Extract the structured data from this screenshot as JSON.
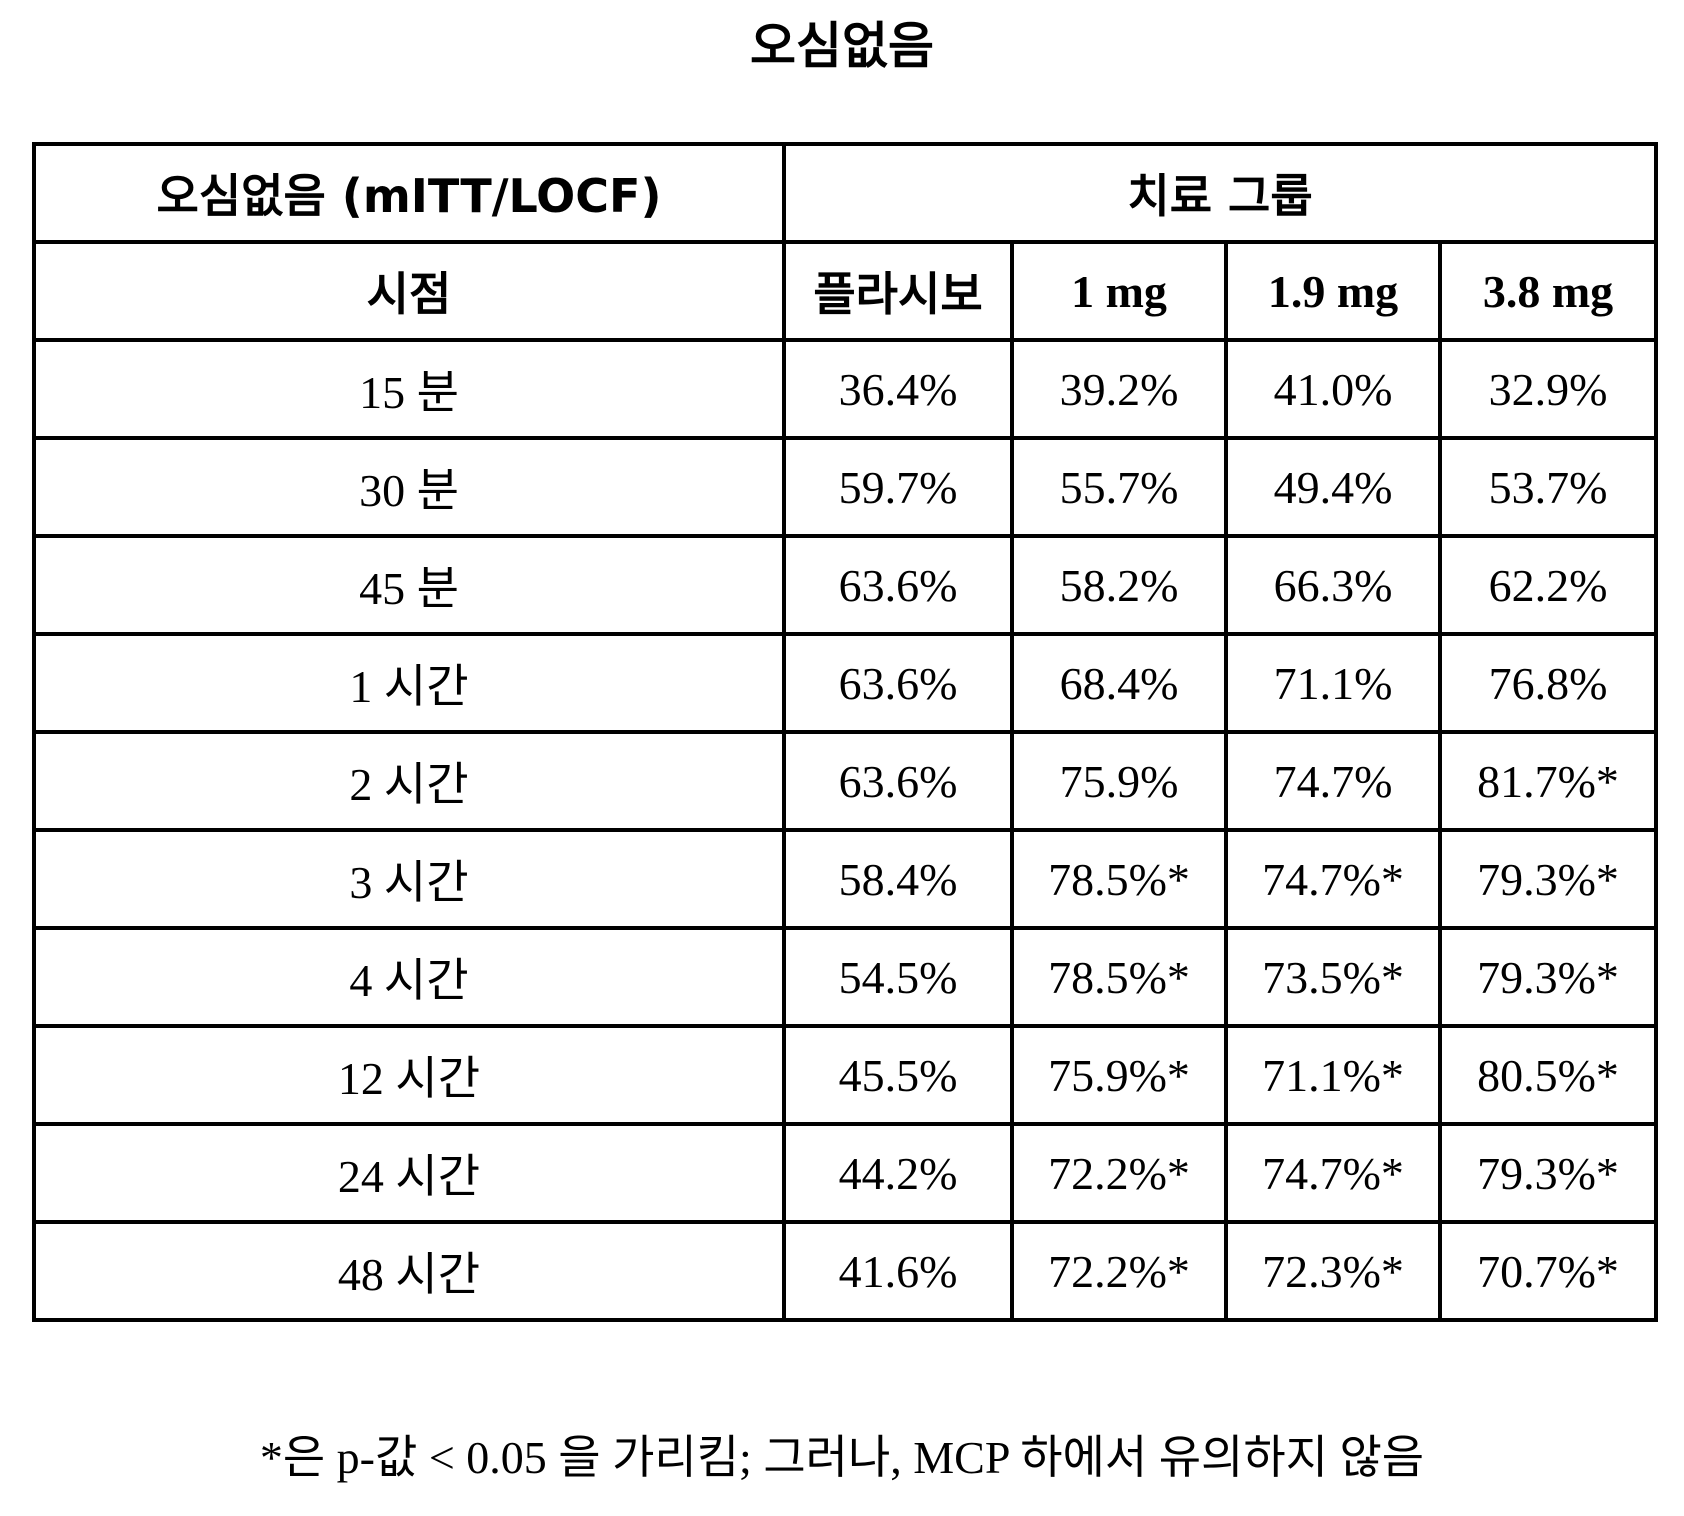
{
  "title": "오심없음",
  "table": {
    "header_row_1": {
      "left_label": "오심없음 (mITT/LOCF)",
      "group_label": "치료 그룹"
    },
    "header_row_2": {
      "timepoint_label": "시점",
      "columns": [
        "플라시보",
        "1 mg",
        "1.9 mg",
        "3.8 mg"
      ]
    },
    "rows": [
      {
        "timepoint": "15 분",
        "values": [
          "36.4%",
          "39.2%",
          "41.0%",
          "32.9%"
        ]
      },
      {
        "timepoint": "30 분",
        "values": [
          "59.7%",
          "55.7%",
          "49.4%",
          "53.7%"
        ]
      },
      {
        "timepoint": "45 분",
        "values": [
          "63.6%",
          "58.2%",
          "66.3%",
          "62.2%"
        ]
      },
      {
        "timepoint": "1 시간",
        "values": [
          "63.6%",
          "68.4%",
          "71.1%",
          "76.8%"
        ]
      },
      {
        "timepoint": "2 시간",
        "values": [
          "63.6%",
          "75.9%",
          "74.7%",
          "81.7%*"
        ]
      },
      {
        "timepoint": "3 시간",
        "values": [
          "58.4%",
          "78.5%*",
          "74.7%*",
          "79.3%*"
        ]
      },
      {
        "timepoint": "4 시간",
        "values": [
          "54.5%",
          "78.5%*",
          "73.5%*",
          "79.3%*"
        ]
      },
      {
        "timepoint": "12 시간",
        "values": [
          "45.5%",
          "75.9%*",
          "71.1%*",
          "80.5%*"
        ]
      },
      {
        "timepoint": "24 시간",
        "values": [
          "44.2%",
          "72.2%*",
          "74.7%*",
          "79.3%*"
        ]
      },
      {
        "timepoint": "48 시간",
        "values": [
          "41.6%",
          "72.2%*",
          "72.3%*",
          "70.7%*"
        ]
      }
    ]
  },
  "footnote": "*은 p-값 < 0.05 을 가리킴; 그러나, MCP 하에서 유의하지 않음"
}
